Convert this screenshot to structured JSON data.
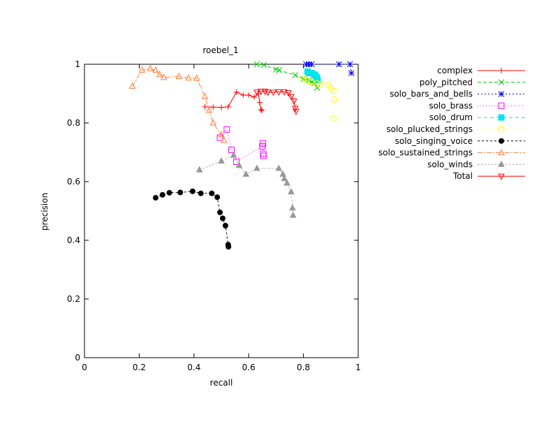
{
  "chart_data": {
    "type": "scatter",
    "title": "roebel_1",
    "xlabel": "recall",
    "ylabel": "precision",
    "xlim": [
      0,
      1
    ],
    "ylim": [
      0,
      1
    ],
    "xticks": [
      "0",
      "0.2",
      "0.4",
      "0.6",
      "0.8",
      "1"
    ],
    "yticks": [
      "0",
      "0.2",
      "0.4",
      "0.6",
      "0.8",
      "1"
    ],
    "grid": false,
    "legend_position": "outside-right",
    "series": [
      {
        "name": "complex",
        "color": "#ff0000",
        "marker": "plus",
        "dash": "none",
        "points": [
          [
            0.44,
            0.855
          ],
          [
            0.47,
            0.854
          ],
          [
            0.5,
            0.853
          ],
          [
            0.525,
            0.855
          ],
          [
            0.555,
            0.905
          ],
          [
            0.58,
            0.895
          ],
          [
            0.6,
            0.895
          ],
          [
            0.62,
            0.888
          ],
          [
            0.635,
            0.9
          ],
          [
            0.64,
            0.87
          ],
          [
            0.645,
            0.845
          ],
          [
            0.648,
            0.843
          ]
        ]
      },
      {
        "name": "poly_pitched",
        "color": "#00cc00",
        "marker": "x",
        "dash": "5,3",
        "points": [
          [
            0.63,
            1.0
          ],
          [
            0.655,
            0.998
          ],
          [
            0.7,
            0.982
          ],
          [
            0.71,
            0.98
          ],
          [
            0.77,
            0.963
          ],
          [
            0.8,
            0.95
          ],
          [
            0.82,
            0.945
          ],
          [
            0.83,
            0.94
          ],
          [
            0.84,
            0.935
          ],
          [
            0.85,
            0.92
          ]
        ]
      },
      {
        "name": "solo_bars_and_bells",
        "color": "#0000ff",
        "marker": "star",
        "dash": "2,3",
        "points": [
          [
            0.81,
            1.0
          ],
          [
            0.82,
            1.0
          ],
          [
            0.83,
            1.0
          ],
          [
            0.93,
            1.0
          ],
          [
            0.97,
            1.0
          ],
          [
            0.975,
            0.97
          ]
        ]
      },
      {
        "name": "solo_brass",
        "color": "#ff00ff",
        "marker": "square-open",
        "dash": "1,3",
        "points": [
          [
            0.495,
            0.75
          ],
          [
            0.52,
            0.778
          ],
          [
            0.537,
            0.708
          ],
          [
            0.555,
            0.668
          ],
          [
            0.65,
            0.72
          ],
          [
            0.652,
            0.73
          ],
          [
            0.653,
            0.695
          ],
          [
            0.654,
            0.688
          ]
        ]
      },
      {
        "name": "solo_drum",
        "color": "#00e5ee",
        "marker": "square-filled",
        "dash": "5,4",
        "points": [
          [
            0.815,
            0.975
          ],
          [
            0.82,
            0.97
          ],
          [
            0.83,
            0.97
          ],
          [
            0.84,
            0.965
          ],
          [
            0.845,
            0.96
          ],
          [
            0.848,
            0.955
          ],
          [
            0.85,
            0.95
          ],
          [
            0.852,
            0.945
          ]
        ]
      },
      {
        "name": "solo_plucked_strings",
        "color": "#ffff00",
        "marker": "circle-open",
        "dash": "1,3",
        "points": [
          [
            0.8,
            0.95
          ],
          [
            0.81,
            0.945
          ],
          [
            0.83,
            0.94
          ],
          [
            0.85,
            0.935
          ],
          [
            0.86,
            0.93
          ],
          [
            0.89,
            0.93
          ],
          [
            0.9,
            0.92
          ],
          [
            0.91,
            0.91
          ],
          [
            0.912,
            0.88
          ],
          [
            0.91,
            0.815
          ]
        ]
      },
      {
        "name": "solo_singing_voice",
        "color": "#000000",
        "marker": "circle-filled",
        "dash": "3,3",
        "points": [
          [
            0.26,
            0.545
          ],
          [
            0.285,
            0.555
          ],
          [
            0.31,
            0.562
          ],
          [
            0.35,
            0.563
          ],
          [
            0.395,
            0.567
          ],
          [
            0.425,
            0.56
          ],
          [
            0.465,
            0.56
          ],
          [
            0.485,
            0.547
          ],
          [
            0.495,
            0.495
          ],
          [
            0.505,
            0.475
          ],
          [
            0.515,
            0.45
          ],
          [
            0.525,
            0.385
          ],
          [
            0.526,
            0.378
          ]
        ]
      },
      {
        "name": "solo_sustained_strings",
        "color": "#ff7f3f",
        "marker": "triangle-open",
        "dash": "7,2,2,2",
        "points": [
          [
            0.175,
            0.925
          ],
          [
            0.21,
            0.98
          ],
          [
            0.24,
            0.985
          ],
          [
            0.26,
            0.98
          ],
          [
            0.275,
            0.965
          ],
          [
            0.29,
            0.955
          ],
          [
            0.345,
            0.958
          ],
          [
            0.38,
            0.953
          ],
          [
            0.41,
            0.952
          ],
          [
            0.44,
            0.89
          ],
          [
            0.455,
            0.843
          ],
          [
            0.47,
            0.8
          ],
          [
            0.5,
            0.76
          ],
          [
            0.51,
            0.74
          ]
        ]
      },
      {
        "name": "solo_winds",
        "color": "#999999",
        "marker": "triangle-filled",
        "dash": "2,3",
        "points": [
          [
            0.42,
            0.64
          ],
          [
            0.5,
            0.67
          ],
          [
            0.545,
            0.69
          ],
          [
            0.565,
            0.655
          ],
          [
            0.59,
            0.625
          ],
          [
            0.63,
            0.645
          ],
          [
            0.71,
            0.645
          ],
          [
            0.725,
            0.625
          ],
          [
            0.73,
            0.61
          ],
          [
            0.74,
            0.595
          ],
          [
            0.755,
            0.565
          ],
          [
            0.76,
            0.51
          ],
          [
            0.762,
            0.485
          ]
        ]
      },
      {
        "name": "Total",
        "color": "#ff0000",
        "marker": "triangle-down-open",
        "dash": "none",
        "points": [
          [
            0.63,
            0.905
          ],
          [
            0.645,
            0.908
          ],
          [
            0.66,
            0.908
          ],
          [
            0.67,
            0.905
          ],
          [
            0.69,
            0.905
          ],
          [
            0.71,
            0.906
          ],
          [
            0.73,
            0.906
          ],
          [
            0.745,
            0.903
          ],
          [
            0.755,
            0.89
          ],
          [
            0.765,
            0.875
          ],
          [
            0.77,
            0.85
          ],
          [
            0.773,
            0.84
          ]
        ]
      }
    ]
  }
}
